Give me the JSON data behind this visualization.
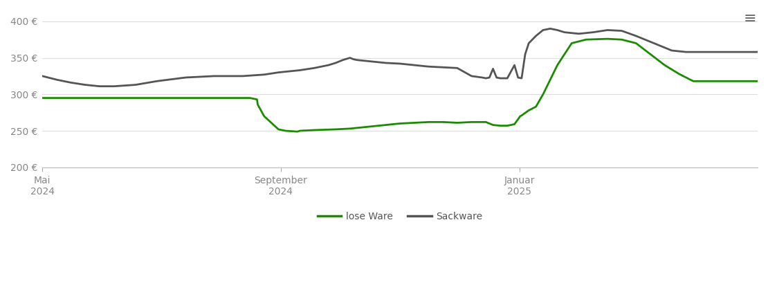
{
  "background_color": "#ffffff",
  "plot_bg_color": "#ffffff",
  "grid_color": "#dddddd",
  "ylim": [
    200,
    415
  ],
  "yticks": [
    200,
    250,
    300,
    350,
    400
  ],
  "ytick_labels": [
    "200 €",
    "250 €",
    "300 €",
    "350 €",
    "400 €"
  ],
  "xtick_labels": [
    "Mai\n2024",
    "September\n2024",
    "Januar\n2025"
  ],
  "xtick_positions": [
    0.0,
    0.333,
    0.667
  ],
  "lose_ware_color": "#1a8c00",
  "sackware_color": "#555555",
  "legend_labels": [
    "lose Ware",
    "Sackware"
  ],
  "lose_ware_x": [
    0.0,
    0.01,
    0.29,
    0.3,
    0.301,
    0.31,
    0.33,
    0.34,
    0.355,
    0.357,
    0.36,
    0.38,
    0.41,
    0.43,
    0.46,
    0.48,
    0.5,
    0.52,
    0.54,
    0.56,
    0.58,
    0.6,
    0.62,
    0.63,
    0.64,
    0.65,
    0.66,
    0.668,
    0.67,
    0.68,
    0.69,
    0.7,
    0.71,
    0.72,
    0.73,
    0.74,
    0.76,
    0.79,
    0.81,
    0.83,
    0.85,
    0.87,
    0.89,
    0.91,
    0.94,
    0.96,
    0.98,
    1.0
  ],
  "lose_ware_y": [
    295,
    295,
    295,
    293,
    286,
    270,
    252,
    250,
    249,
    249,
    250,
    251,
    252,
    253,
    256,
    258,
    260,
    261,
    262,
    262,
    261,
    262,
    262,
    258,
    257,
    257,
    259,
    270,
    271,
    278,
    283,
    300,
    320,
    340,
    355,
    370,
    375,
    376,
    375,
    370,
    355,
    340,
    328,
    318,
    318,
    318,
    318,
    318
  ],
  "sackware_x": [
    0.0,
    0.02,
    0.04,
    0.06,
    0.08,
    0.1,
    0.13,
    0.16,
    0.2,
    0.24,
    0.28,
    0.31,
    0.33,
    0.36,
    0.38,
    0.4,
    0.41,
    0.42,
    0.43,
    0.435,
    0.44,
    0.46,
    0.48,
    0.5,
    0.52,
    0.54,
    0.56,
    0.58,
    0.6,
    0.615,
    0.62,
    0.625,
    0.63,
    0.635,
    0.64,
    0.645,
    0.65,
    0.66,
    0.665,
    0.67,
    0.675,
    0.68,
    0.69,
    0.7,
    0.71,
    0.72,
    0.73,
    0.75,
    0.77,
    0.79,
    0.81,
    0.83,
    0.86,
    0.88,
    0.9,
    0.94,
    0.97,
    1.0
  ],
  "sackware_y": [
    325,
    320,
    316,
    313,
    311,
    311,
    313,
    318,
    323,
    325,
    325,
    327,
    330,
    333,
    336,
    340,
    343,
    347,
    350,
    348,
    347,
    345,
    343,
    342,
    340,
    338,
    337,
    336,
    325,
    323,
    322,
    323,
    335,
    323,
    322,
    322,
    322,
    340,
    323,
    322,
    355,
    370,
    380,
    388,
    390,
    388,
    385,
    383,
    385,
    388,
    387,
    380,
    368,
    360,
    358,
    358,
    358,
    358
  ]
}
